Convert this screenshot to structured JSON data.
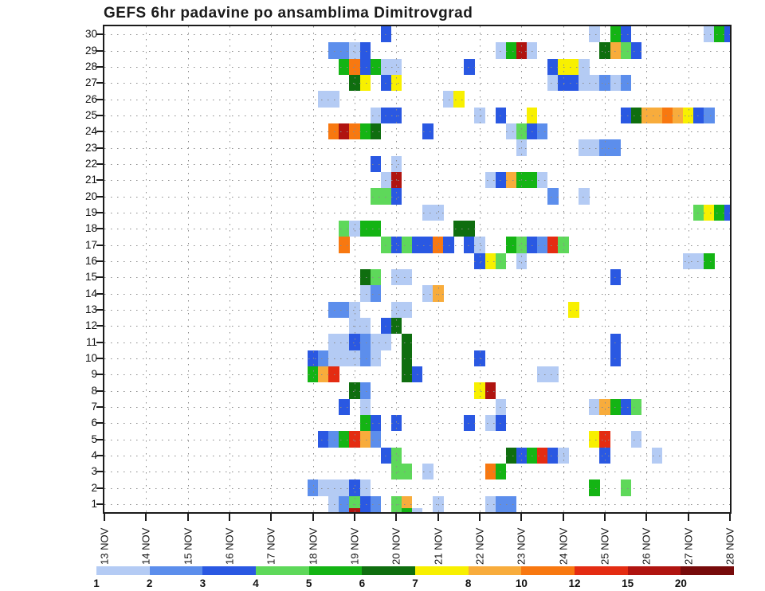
{
  "title": "GEFS 6hr padavine po ansamblima Dimitrovgrad",
  "chart_data": {
    "type": "heatmap",
    "title": "GEFS 6hr padavine po ansamblima Dimitrovgrad",
    "x_dates": [
      "13 NOV",
      "14 NOV",
      "15 NOV",
      "16 NOV",
      "17 NOV",
      "18 NOV",
      "19 NOV",
      "20 NOV",
      "21 NOV",
      "22 NOV",
      "23 NOV",
      "24 NOV",
      "25 NOV",
      "26 NOV",
      "27 NOV",
      "28 NOV"
    ],
    "slots_per_day": 4,
    "y_members": [
      30,
      29,
      28,
      27,
      26,
      25,
      24,
      23,
      22,
      21,
      20,
      19,
      18,
      17,
      16,
      15,
      14,
      13,
      12,
      11,
      10,
      9,
      8,
      7,
      6,
      5,
      4,
      3,
      2,
      1
    ],
    "grid": "dotted",
    "colorbar": {
      "tick_labels": [
        "1",
        "2",
        "3",
        "4",
        "5",
        "6",
        "7",
        "8",
        "10",
        "12",
        "15",
        "20"
      ],
      "colors": [
        "#B4CBF4",
        "#5C8EEC",
        "#2A58E2",
        "#5ED85A",
        "#14B414",
        "#0F6E0F",
        "#F8F000",
        "#F8AC3C",
        "#F87810",
        "#E42C12",
        "#B01410",
        "#770B0B"
      ]
    },
    "cells_format": [
      "member",
      "slot_6hr_from_13NOV_00",
      "color_bin_1to12"
    ],
    "cells": [
      [
        30,
        27,
        3
      ],
      [
        30,
        47,
        1
      ],
      [
        30,
        49,
        5
      ],
      [
        30,
        50,
        3
      ],
      [
        30,
        58,
        1
      ],
      [
        30,
        59,
        5
      ],
      [
        30,
        60,
        3
      ],
      [
        29,
        22,
        2
      ],
      [
        29,
        23,
        2
      ],
      [
        29,
        24,
        1
      ],
      [
        29,
        25,
        3
      ],
      [
        29,
        38,
        1
      ],
      [
        29,
        39,
        5
      ],
      [
        29,
        40,
        11
      ],
      [
        29,
        41,
        1
      ],
      [
        29,
        48,
        6
      ],
      [
        29,
        49,
        8
      ],
      [
        29,
        50,
        4
      ],
      [
        29,
        51,
        3
      ],
      [
        28,
        23,
        5
      ],
      [
        28,
        24,
        9
      ],
      [
        28,
        25,
        3
      ],
      [
        28,
        26,
        5
      ],
      [
        28,
        27,
        1
      ],
      [
        28,
        28,
        1
      ],
      [
        28,
        35,
        3
      ],
      [
        28,
        43,
        3
      ],
      [
        28,
        44,
        7
      ],
      [
        28,
        45,
        7
      ],
      [
        28,
        46,
        1
      ],
      [
        27,
        24,
        6
      ],
      [
        27,
        25,
        7
      ],
      [
        27,
        27,
        3
      ],
      [
        27,
        28,
        7
      ],
      [
        27,
        43,
        1
      ],
      [
        27,
        44,
        3
      ],
      [
        27,
        45,
        3
      ],
      [
        27,
        46,
        1
      ],
      [
        27,
        47,
        1
      ],
      [
        27,
        48,
        2
      ],
      [
        27,
        49,
        1
      ],
      [
        27,
        50,
        2
      ],
      [
        26,
        21,
        1
      ],
      [
        26,
        22,
        1
      ],
      [
        26,
        33,
        1
      ],
      [
        26,
        34,
        7
      ],
      [
        25,
        26,
        1
      ],
      [
        25,
        27,
        3
      ],
      [
        25,
        28,
        3
      ],
      [
        25,
        36,
        1
      ],
      [
        25,
        38,
        3
      ],
      [
        25,
        41,
        7
      ],
      [
        25,
        50,
        3
      ],
      [
        25,
        51,
        6
      ],
      [
        25,
        52,
        8
      ],
      [
        25,
        53,
        8
      ],
      [
        25,
        54,
        9
      ],
      [
        25,
        55,
        8
      ],
      [
        25,
        56,
        7
      ],
      [
        25,
        57,
        3
      ],
      [
        25,
        58,
        2
      ],
      [
        24,
        22,
        9
      ],
      [
        24,
        23,
        11
      ],
      [
        24,
        24,
        9
      ],
      [
        24,
        25,
        5
      ],
      [
        24,
        26,
        6
      ],
      [
        24,
        31,
        3
      ],
      [
        24,
        39,
        1
      ],
      [
        24,
        40,
        4
      ],
      [
        24,
        41,
        3
      ],
      [
        24,
        42,
        2
      ],
      [
        23,
        40,
        1
      ],
      [
        23,
        46,
        1
      ],
      [
        23,
        47,
        1
      ],
      [
        23,
        48,
        2
      ],
      [
        23,
        49,
        2
      ],
      [
        22,
        26,
        3
      ],
      [
        22,
        28,
        1
      ],
      [
        21,
        27,
        1
      ],
      [
        21,
        28,
        11
      ],
      [
        21,
        37,
        1
      ],
      [
        21,
        38,
        3
      ],
      [
        21,
        39,
        8
      ],
      [
        21,
        40,
        5
      ],
      [
        21,
        41,
        5
      ],
      [
        21,
        42,
        1
      ],
      [
        20,
        26,
        4
      ],
      [
        20,
        27,
        4
      ],
      [
        20,
        28,
        3
      ],
      [
        20,
        43,
        2
      ],
      [
        20,
        46,
        1
      ],
      [
        19,
        31,
        1
      ],
      [
        19,
        32,
        1
      ],
      [
        19,
        57,
        4
      ],
      [
        19,
        58,
        7
      ],
      [
        19,
        59,
        5
      ],
      [
        19,
        60,
        3
      ],
      [
        18,
        23,
        4
      ],
      [
        18,
        24,
        1
      ],
      [
        18,
        25,
        5
      ],
      [
        18,
        26,
        5
      ],
      [
        18,
        34,
        6
      ],
      [
        18,
        35,
        6
      ],
      [
        17,
        23,
        9
      ],
      [
        17,
        27,
        4
      ],
      [
        17,
        28,
        3
      ],
      [
        17,
        29,
        4
      ],
      [
        17,
        30,
        3
      ],
      [
        17,
        31,
        3
      ],
      [
        17,
        32,
        9
      ],
      [
        17,
        33,
        3
      ],
      [
        17,
        35,
        3
      ],
      [
        17,
        36,
        1
      ],
      [
        17,
        39,
        5
      ],
      [
        17,
        40,
        4
      ],
      [
        17,
        41,
        3
      ],
      [
        17,
        42,
        2
      ],
      [
        17,
        43,
        10
      ],
      [
        17,
        44,
        4
      ],
      [
        16,
        36,
        3
      ],
      [
        16,
        37,
        7
      ],
      [
        16,
        38,
        4
      ],
      [
        16,
        40,
        1
      ],
      [
        16,
        56,
        1
      ],
      [
        16,
        57,
        1
      ],
      [
        16,
        58,
        5
      ],
      [
        15,
        25,
        6
      ],
      [
        15,
        26,
        4
      ],
      [
        15,
        28,
        1
      ],
      [
        15,
        29,
        1
      ],
      [
        15,
        49,
        3
      ],
      [
        14,
        25,
        1
      ],
      [
        14,
        26,
        2
      ],
      [
        14,
        31,
        1
      ],
      [
        14,
        32,
        8
      ],
      [
        13,
        22,
        2
      ],
      [
        13,
        23,
        2
      ],
      [
        13,
        24,
        1
      ],
      [
        13,
        28,
        1
      ],
      [
        13,
        29,
        1
      ],
      [
        13,
        45,
        7
      ],
      [
        12,
        24,
        1
      ],
      [
        12,
        25,
        1
      ],
      [
        12,
        27,
        3
      ],
      [
        12,
        28,
        6
      ],
      [
        11,
        22,
        1
      ],
      [
        11,
        23,
        1
      ],
      [
        11,
        24,
        3
      ],
      [
        11,
        25,
        2
      ],
      [
        11,
        26,
        1
      ],
      [
        11,
        27,
        1
      ],
      [
        11,
        29,
        6
      ],
      [
        11,
        49,
        3
      ],
      [
        10,
        20,
        3
      ],
      [
        10,
        21,
        2
      ],
      [
        10,
        22,
        1
      ],
      [
        10,
        23,
        1
      ],
      [
        10,
        24,
        1
      ],
      [
        10,
        25,
        2
      ],
      [
        10,
        26,
        1
      ],
      [
        10,
        29,
        6
      ],
      [
        10,
        36,
        3
      ],
      [
        10,
        49,
        3
      ],
      [
        9,
        20,
        5
      ],
      [
        9,
        21,
        8
      ],
      [
        9,
        22,
        10
      ],
      [
        9,
        29,
        6
      ],
      [
        9,
        30,
        3
      ],
      [
        9,
        42,
        1
      ],
      [
        9,
        43,
        1
      ],
      [
        8,
        24,
        6
      ],
      [
        8,
        25,
        2
      ],
      [
        8,
        36,
        7
      ],
      [
        8,
        37,
        11
      ],
      [
        7,
        23,
        3
      ],
      [
        7,
        25,
        1
      ],
      [
        7,
        38,
        1
      ],
      [
        7,
        47,
        1
      ],
      [
        7,
        48,
        8
      ],
      [
        7,
        49,
        5
      ],
      [
        7,
        50,
        3
      ],
      [
        7,
        51,
        4
      ],
      [
        6,
        25,
        5
      ],
      [
        6,
        26,
        3
      ],
      [
        6,
        28,
        3
      ],
      [
        6,
        35,
        3
      ],
      [
        6,
        37,
        1
      ],
      [
        6,
        38,
        3
      ],
      [
        5,
        21,
        3
      ],
      [
        5,
        22,
        2
      ],
      [
        5,
        23,
        5
      ],
      [
        5,
        24,
        10
      ],
      [
        5,
        25,
        8
      ],
      [
        5,
        26,
        2
      ],
      [
        5,
        47,
        7
      ],
      [
        5,
        48,
        10
      ],
      [
        5,
        51,
        1
      ],
      [
        4,
        27,
        3
      ],
      [
        4,
        28,
        4
      ],
      [
        4,
        39,
        6
      ],
      [
        4,
        40,
        3
      ],
      [
        4,
        41,
        5
      ],
      [
        4,
        42,
        10
      ],
      [
        4,
        43,
        3
      ],
      [
        4,
        44,
        1
      ],
      [
        4,
        48,
        3
      ],
      [
        4,
        53,
        1
      ],
      [
        3,
        28,
        4
      ],
      [
        3,
        29,
        4
      ],
      [
        3,
        31,
        1
      ],
      [
        3,
        37,
        9
      ],
      [
        3,
        38,
        5
      ],
      [
        2,
        20,
        2
      ],
      [
        2,
        21,
        1
      ],
      [
        2,
        22,
        1
      ],
      [
        2,
        23,
        1
      ],
      [
        2,
        24,
        3
      ],
      [
        2,
        25,
        1
      ],
      [
        2,
        47,
        5
      ],
      [
        2,
        50,
        4
      ],
      [
        1,
        22,
        1
      ],
      [
        1,
        23,
        2
      ],
      [
        1,
        24,
        4
      ],
      [
        1,
        25,
        3
      ],
      [
        1,
        26,
        2
      ],
      [
        1,
        28,
        4
      ],
      [
        1,
        29,
        8
      ],
      [
        1,
        32,
        1
      ],
      [
        1,
        37,
        1
      ],
      [
        1,
        38,
        2
      ],
      [
        1,
        39,
        2
      ],
      [
        0,
        24,
        11
      ],
      [
        0,
        29,
        5
      ],
      [
        0,
        30,
        1
      ]
    ]
  }
}
